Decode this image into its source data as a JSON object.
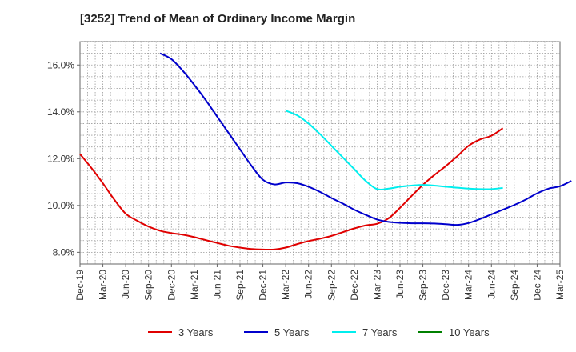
{
  "chart_data": {
    "type": "line",
    "title": "[3252]  Trend of Mean of Ordinary Income Margin",
    "xlabel": "",
    "ylabel": "",
    "grid": true,
    "legend_position": "bottom",
    "x_ticks": [
      "Dec-19",
      "Mar-20",
      "Jun-20",
      "Sep-20",
      "Dec-20",
      "Mar-21",
      "Jun-21",
      "Sep-21",
      "Dec-21",
      "Mar-22",
      "Jun-22",
      "Sep-22",
      "Dec-22",
      "Mar-23",
      "Jun-23",
      "Sep-23",
      "Dec-23",
      "Mar-24",
      "Jun-24",
      "Sep-24",
      "Dec-24",
      "Mar-25"
    ],
    "y_ticks": [
      "8.0%",
      "10.0%",
      "12.0%",
      "14.0%",
      "16.0%"
    ],
    "ylim": [
      7.5,
      17.0
    ],
    "series": [
      {
        "name": "3 Years",
        "color": "#e00000",
        "values": [
          12.2,
          11.6,
          10.95,
          10.25,
          9.65,
          9.35,
          9.1,
          8.92,
          8.82,
          8.75,
          8.65,
          8.52,
          8.4,
          8.28,
          8.2,
          8.14,
          8.12,
          8.12,
          8.2,
          8.35,
          8.48,
          8.58,
          8.7,
          8.86,
          9.02,
          9.15,
          9.22,
          9.45,
          9.9,
          10.4,
          10.88,
          11.3,
          11.68,
          12.1,
          12.55,
          12.82,
          12.98,
          13.3
        ]
      },
      {
        "name": "5 Years",
        "color": "#0000cc",
        "values": [
          null,
          null,
          null,
          null,
          null,
          null,
          null,
          16.5,
          16.25,
          15.75,
          15.15,
          14.5,
          13.8,
          13.1,
          12.4,
          11.7,
          11.1,
          10.9,
          10.98,
          10.95,
          10.8,
          10.58,
          10.32,
          10.08,
          9.82,
          9.6,
          9.4,
          9.3,
          9.26,
          9.24,
          9.24,
          9.23,
          9.2,
          9.17,
          9.25,
          9.42,
          9.62,
          9.82,
          10.02,
          10.25,
          10.52,
          10.72,
          10.82,
          11.05
        ]
      },
      {
        "name": "7 Years",
        "color": "#00eeee",
        "values": [
          14.05,
          13.85,
          13.5,
          13.05,
          12.55,
          12.05,
          11.55,
          11.05,
          10.7,
          10.72,
          10.8,
          10.85,
          10.88,
          10.85,
          10.8,
          10.76,
          10.72,
          10.7,
          10.7,
          10.75
        ]
      },
      {
        "name": "10 Years",
        "color": "#008000",
        "values": []
      }
    ]
  }
}
